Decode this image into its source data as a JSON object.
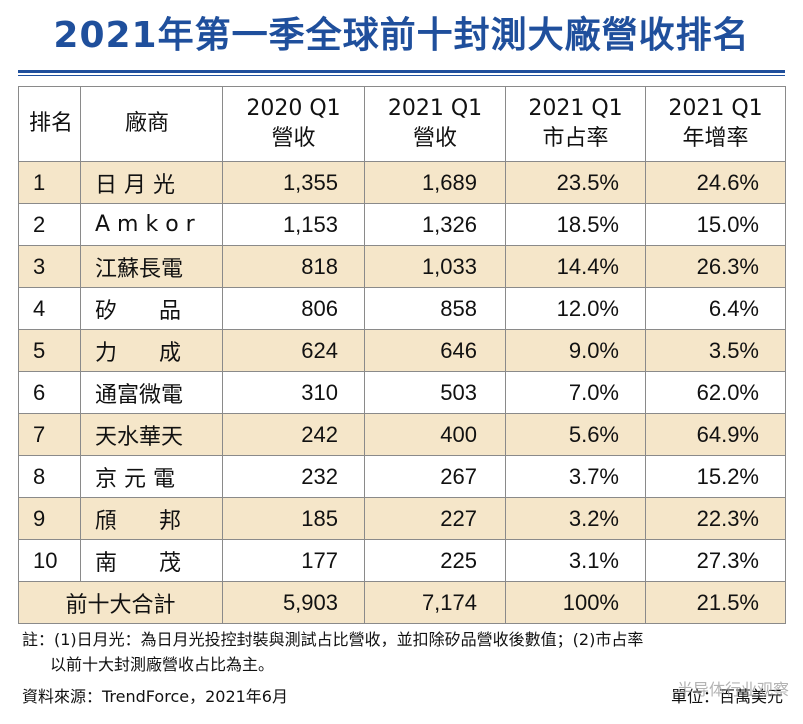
{
  "title": "2021年第一季全球前十封測大廠營收排名",
  "chart_data": {
    "type": "table",
    "columns": [
      "排名",
      "廠商",
      "2020 Q1 營收",
      "2021 Q1 營收",
      "2021 Q1 市占率",
      "2021 Q1 年增率"
    ],
    "header": {
      "rank": "排名",
      "company": "廠商",
      "rev2020_line1": "2020 Q1",
      "rev2020_line2": "營收",
      "rev2021_line1": "2021 Q1",
      "rev2021_line2": "營收",
      "share_line1": "2021 Q1",
      "share_line2": "市占率",
      "growth_line1": "2021 Q1",
      "growth_line2": "年增率"
    },
    "rows": [
      {
        "rank": "1",
        "company": "日 月 光",
        "rev2020": "1,355",
        "rev2021": "1,689",
        "share": "23.5%",
        "growth": "24.6%"
      },
      {
        "rank": "2",
        "company": "A m k o r",
        "rev2020": "1,153",
        "rev2021": "1,326",
        "share": "18.5%",
        "growth": "15.0%"
      },
      {
        "rank": "3",
        "company": "江蘇長電",
        "rev2020": "818",
        "rev2021": "1,033",
        "share": "14.4%",
        "growth": "26.3%"
      },
      {
        "rank": "4",
        "company": "矽      品",
        "rev2020": "806",
        "rev2021": "858",
        "share": "12.0%",
        "growth": "6.4%"
      },
      {
        "rank": "5",
        "company": "力      成",
        "rev2020": "624",
        "rev2021": "646",
        "share": "9.0%",
        "growth": "3.5%"
      },
      {
        "rank": "6",
        "company": "通富微電",
        "rev2020": "310",
        "rev2021": "503",
        "share": "7.0%",
        "growth": "62.0%"
      },
      {
        "rank": "7",
        "company": "天水華天",
        "rev2020": "242",
        "rev2021": "400",
        "share": "5.6%",
        "growth": "64.9%"
      },
      {
        "rank": "8",
        "company": "京 元 電",
        "rev2020": "232",
        "rev2021": "267",
        "share": "3.7%",
        "growth": "15.2%"
      },
      {
        "rank": "9",
        "company": "頎      邦",
        "rev2020": "185",
        "rev2021": "227",
        "share": "3.2%",
        "growth": "22.3%"
      },
      {
        "rank": "10",
        "company": "南      茂",
        "rev2020": "177",
        "rev2021": "225",
        "share": "3.1%",
        "growth": "27.3%"
      }
    ],
    "total": {
      "label": "前十大合計",
      "rev2020": "5,903",
      "rev2021": "7,174",
      "share": "100%",
      "growth": "21.5%"
    }
  },
  "note": {
    "line1": "註：(1)日月光：為日月光投控封裝與測試占比營收，並扣除矽品營收後數值；(2)市占率",
    "line2": "以前十大封測廠營收占比為主。"
  },
  "source": "資料來源：TrendForce，2021年6月",
  "unit": "單位：百萬美元",
  "watermark": "半导体行业观察",
  "colors": {
    "title": "#1f4f9c",
    "row_shade": "#f5e6c9",
    "border": "#8a8a8a"
  }
}
